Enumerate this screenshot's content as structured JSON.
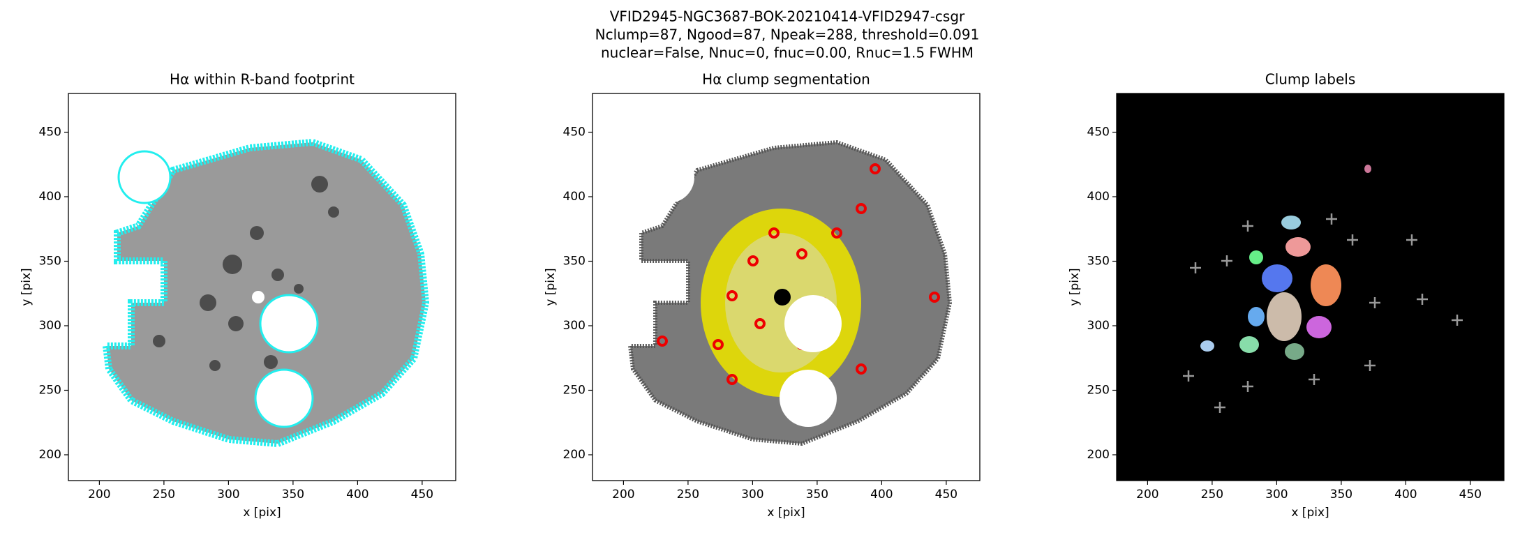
{
  "suptitle": [
    "VFID2945-NGC3687-BOK-20210414-VFID2947-csgr",
    "Nclump=87, Ngood=87, Npeak=288, threshold=0.091",
    "nuclear=False, Nnuc=0, fnuc=0.00, Rnuc=1.5 FWHM"
  ],
  "chart_data": [
    {
      "type": "image",
      "title": "Hα within R-band footprint",
      "x_label": "x [pix]",
      "y_label": "y [pix]",
      "xlim": [
        176,
        476
      ],
      "ylim": [
        180,
        480
      ],
      "xticks": [
        200,
        250,
        300,
        350,
        400,
        450
      ],
      "yticks": [
        200,
        250,
        300,
        350,
        400,
        450
      ]
    },
    {
      "type": "image",
      "title": "Hα clump segmentation",
      "x_label": "x [pix]",
      "y_label": "y [pix]",
      "xlim": [
        176,
        476
      ],
      "ylim": [
        180,
        480
      ],
      "xticks": [
        200,
        250,
        300,
        350,
        400,
        450
      ],
      "yticks": [
        200,
        250,
        300,
        350,
        400,
        450
      ]
    },
    {
      "type": "image",
      "title": "Clump labels",
      "x_label": "x [pix]",
      "y_label": "y [pix]",
      "xlim": [
        176,
        476
      ],
      "ylim": [
        180,
        480
      ],
      "xticks": [
        200,
        250,
        300,
        350,
        400,
        450
      ],
      "yticks": [
        200,
        250,
        300,
        350,
        400,
        450
      ]
    }
  ]
}
